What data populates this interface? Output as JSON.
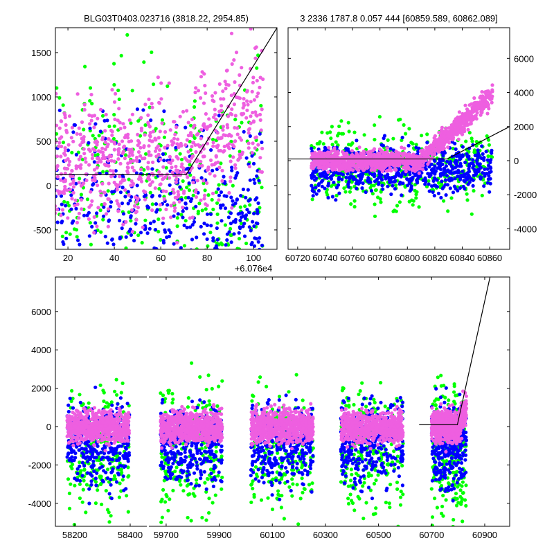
{
  "chart_data": [
    {
      "type": "scatter",
      "title": "BLG03T0403.023716 (3818.22, 2954.85)",
      "xlim": [
        14.6,
        110.1
      ],
      "ylim": [
        -719,
        1781
      ],
      "x_offset_label": "+6.076e4",
      "xticks": [
        20,
        40,
        60,
        80,
        100
      ],
      "yticks": [
        -500,
        0,
        500,
        1000,
        1500
      ],
      "series": [
        {
          "name": "green",
          "color": "#00ff00",
          "count": 320,
          "x": [
            14,
            104
          ],
          "y_center": 0,
          "y_spread": 650
        },
        {
          "name": "blue",
          "color": "#0000ff",
          "count": 420,
          "x": [
            14,
            104
          ],
          "y_center": -250,
          "y_spread": 450
        },
        {
          "name": "pink",
          "color": "#ee5fe0",
          "count": 700,
          "x": [
            14,
            104
          ],
          "y_center": 250,
          "y_spread": 350,
          "rise": true
        }
      ],
      "model_line": {
        "x": [
          14.6,
          71,
          110.1
        ],
        "y": [
          125,
          125,
          1780
        ]
      }
    },
    {
      "type": "scatter",
      "title": "3 2336 1787.8 0.057 444 [60859.589, 60862.089]",
      "xlim": [
        60713,
        60874.6
      ],
      "ylim": [
        -5200,
        7800
      ],
      "xticks": [
        60720,
        60740,
        60760,
        60780,
        60800,
        60820,
        60840,
        60860
      ],
      "yticks": [
        -4000,
        -2000,
        0,
        2000,
        4000,
        6000
      ],
      "yaxis_side": "right",
      "series": [
        {
          "name": "green",
          "color": "#00ff00",
          "count": 450,
          "x": [
            60730,
            60862
          ],
          "y_center": -300,
          "y_spread": 1200
        },
        {
          "name": "blue",
          "color": "#0000ff",
          "count": 650,
          "x": [
            60730,
            60862
          ],
          "y_center": -500,
          "y_spread": 700
        },
        {
          "name": "pink",
          "color": "#ee5fe0",
          "count": 1300,
          "x": [
            60730,
            60862
          ],
          "y_center": 0,
          "y_spread": 280,
          "rise": true
        }
      ],
      "model_line": {
        "x": [
          60713,
          60829,
          60874.6
        ],
        "y": [
          100,
          100,
          2000
        ]
      }
    },
    {
      "type": "scatter",
      "title": "",
      "segments": [
        [
          58130,
          58460
        ],
        [
          59635,
          60994
        ]
      ],
      "ylim": [
        -5200,
        7800
      ],
      "xticks": [
        58200,
        58400,
        59700,
        59900,
        60100,
        60300,
        60500,
        60700,
        60900
      ],
      "yticks": [
        -4000,
        -2000,
        0,
        2000,
        4000,
        6000
      ],
      "clusters": [
        [
          58172,
          58397
        ],
        [
          59679,
          59911
        ],
        [
          60019,
          60254
        ],
        [
          60358,
          60593
        ],
        [
          60700,
          60831
        ]
      ],
      "series": [
        {
          "name": "green",
          "color": "#00ff00",
          "count_per_cluster": 220,
          "y_center": -1200,
          "y_spread": 1700
        },
        {
          "name": "blue",
          "color": "#0000ff",
          "count_per_cluster": 330,
          "y_center": -900,
          "y_spread": 1100
        },
        {
          "name": "pink",
          "color": "#ee5fe0",
          "count_per_cluster": 650,
          "y_center": 0,
          "y_spread": 420
        }
      ],
      "model_line": {
        "x": [
          60653,
          60797,
          60920
        ],
        "y": [
          100,
          100,
          7800
        ]
      }
    }
  ]
}
